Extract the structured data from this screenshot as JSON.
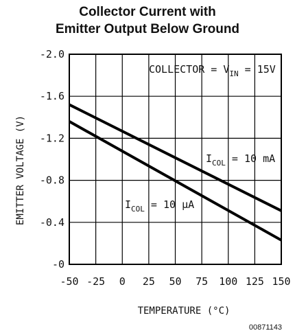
{
  "chart_data": {
    "type": "line",
    "title_line1": "Collector Current with",
    "title_line2": "Emitter Output Below Ground",
    "xlabel": "TEMPERATURE (°C)",
    "ylabel": "EMITTER VOLTAGE (V)",
    "xlim": [
      -50,
      150
    ],
    "ylim": [
      0,
      -2.0
    ],
    "x_ticks": [
      -50,
      -25,
      0,
      25,
      50,
      75,
      100,
      125,
      150
    ],
    "x_tick_labels": [
      "-50",
      "-25",
      "0",
      "25",
      "50",
      "75",
      "100",
      "125",
      "150"
    ],
    "y_ticks": [
      -2.0,
      -1.6,
      -1.2,
      -0.8,
      -0.4,
      0
    ],
    "y_tick_labels": [
      "-2.0",
      "-1.6",
      "-1.2",
      "-0.8",
      "-0.4",
      "-0"
    ],
    "grid": true,
    "series": [
      {
        "name": "ICOL = 10 mA",
        "x": [
          -50,
          150
        ],
        "y": [
          -1.52,
          -0.51
        ]
      },
      {
        "name": "ICOL = 10 µA",
        "x": [
          -50,
          150
        ],
        "y": [
          -1.36,
          -0.23
        ]
      }
    ],
    "annotations": {
      "collector_prefix": "COLLECTOR = V",
      "collector_sub": "IN",
      "collector_suffix": " = 15V",
      "i_main": "I",
      "i_sub": "COL",
      "label_10ma_suffix": " = 10 mA",
      "label_10ua_suffix": " = 10 μA"
    },
    "figure_id": "00871143",
    "line_color": "#000000"
  }
}
